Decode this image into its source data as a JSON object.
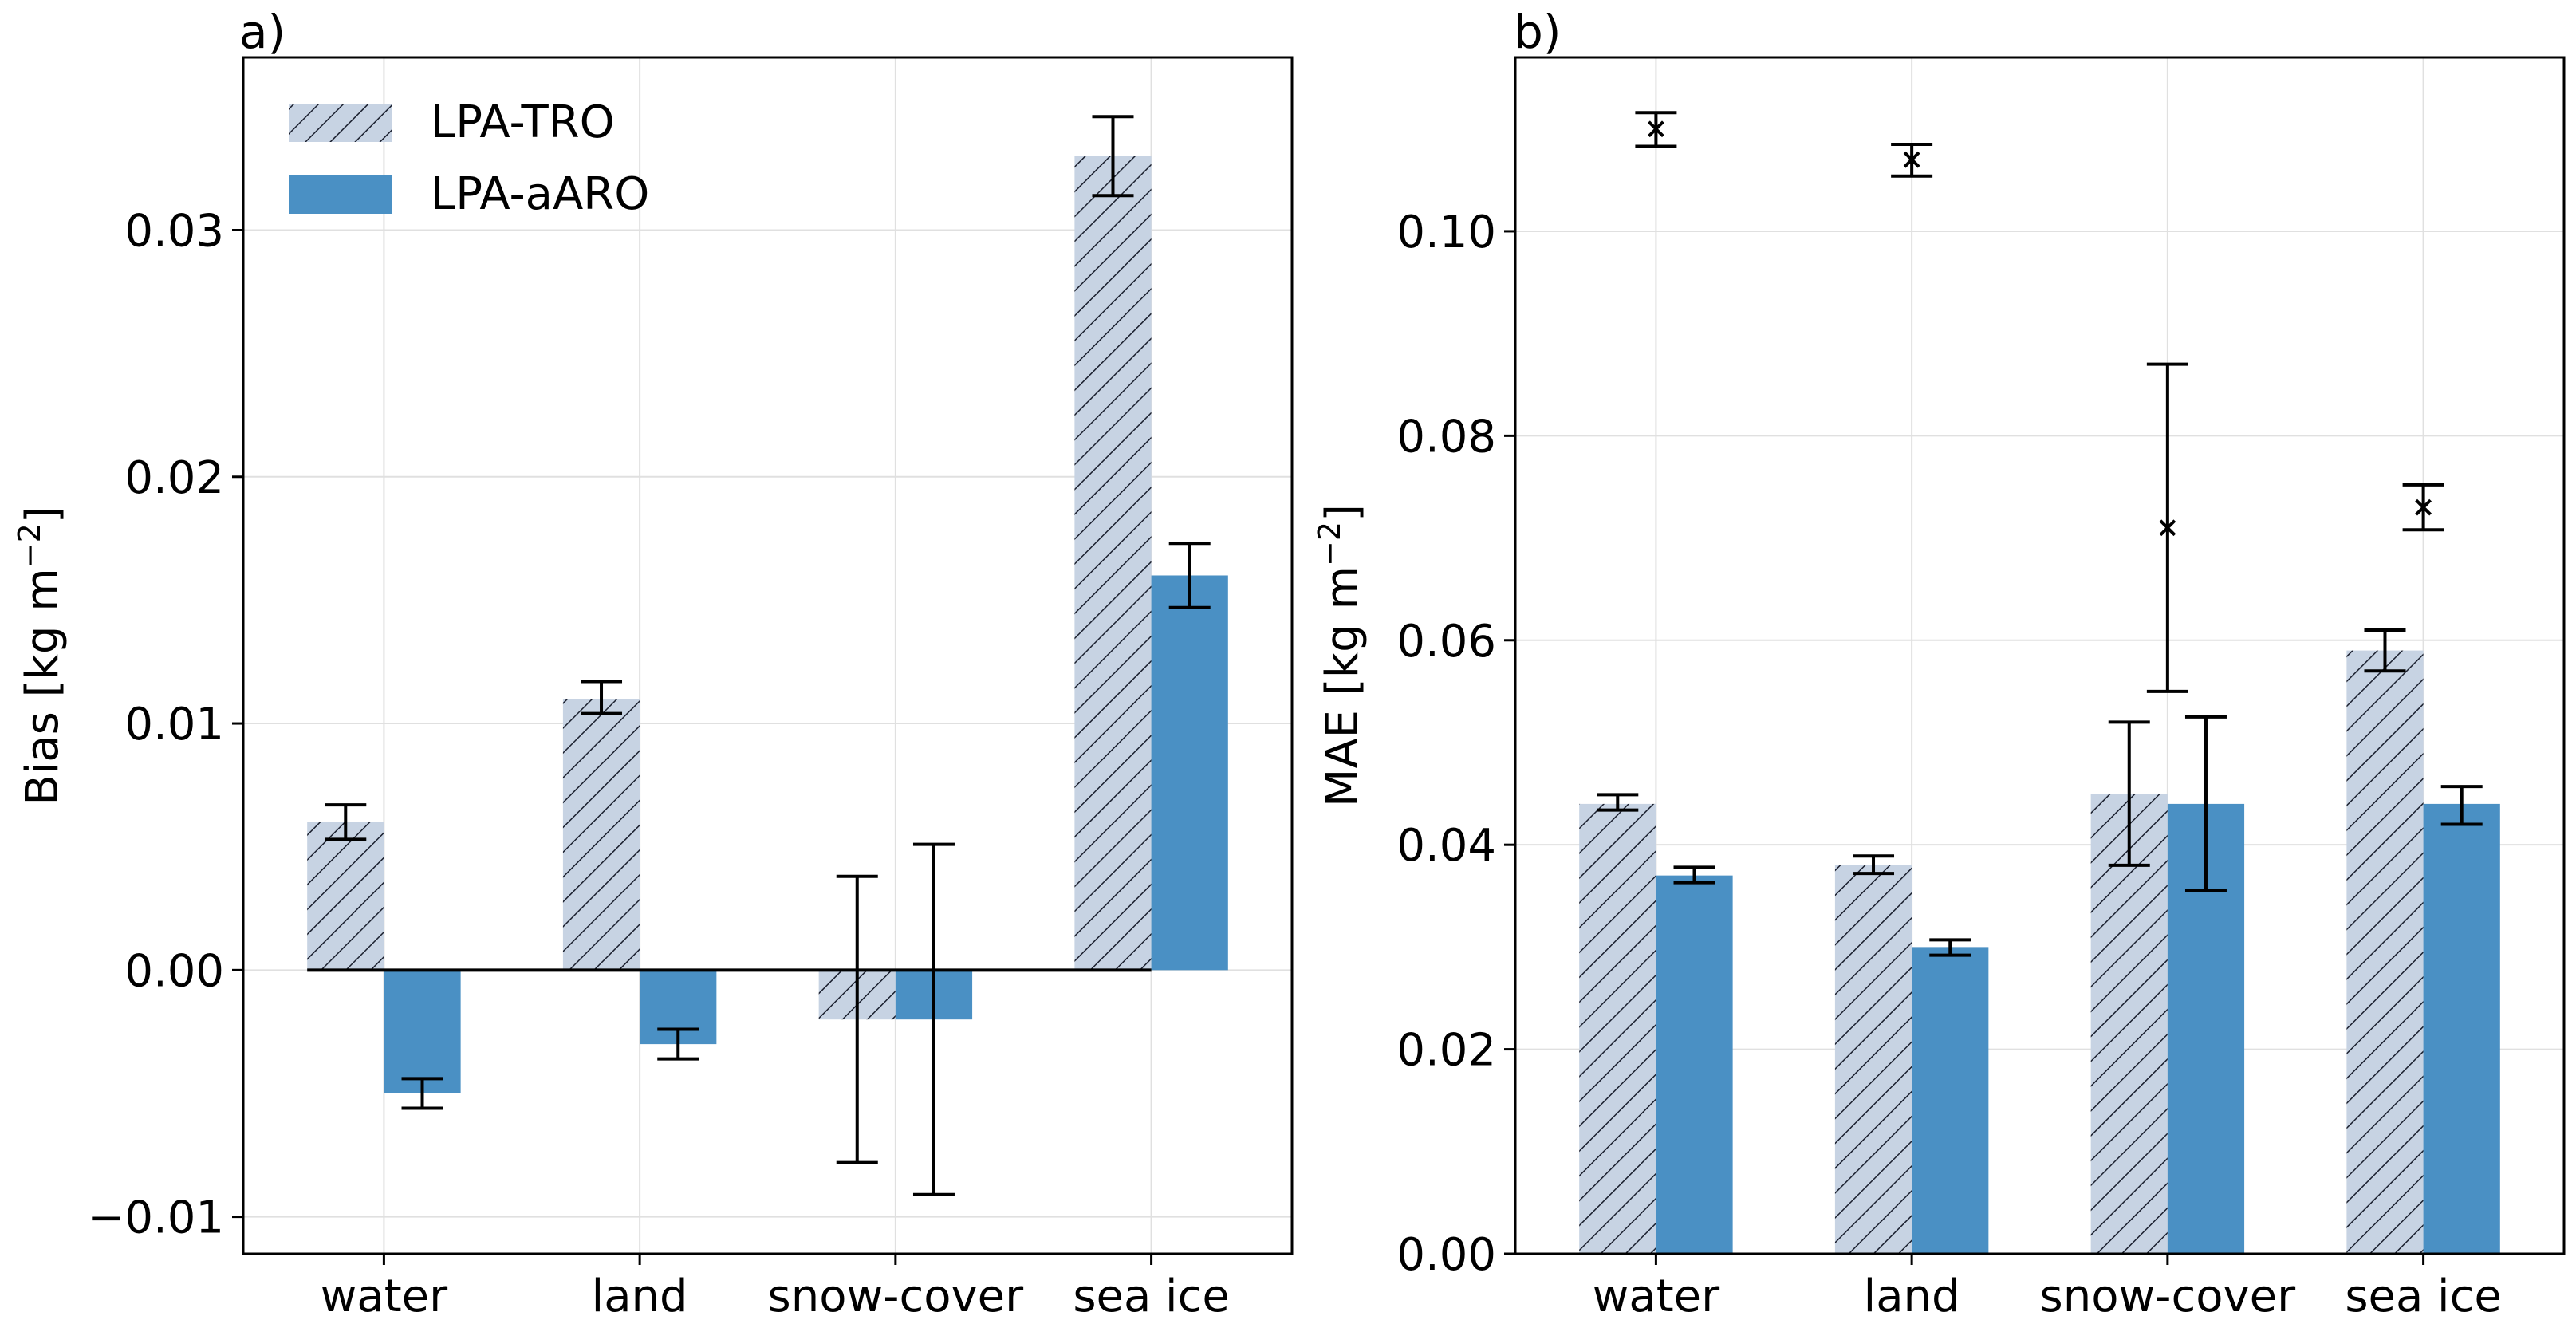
{
  "chart_data": [
    {
      "panel_label": "a)",
      "type": "bar",
      "title": "",
      "xlabel": "",
      "ylabel": "Bias [kg m",
      "ylabel_sup": "−2",
      "ylabel_close": "]",
      "categories": [
        "water",
        "land",
        "snow-cover",
        "sea ice"
      ],
      "ylim": [
        -0.0115,
        0.037
      ],
      "yticks": [
        -0.01,
        0.0,
        0.01,
        0.02,
        0.03
      ],
      "ytick_labels": [
        "−0.01",
        "0.00",
        "0.01",
        "0.02",
        "0.03"
      ],
      "grid": true,
      "legend": "top-left",
      "zero_line": true,
      "series": [
        {
          "name": "LPA-TRO",
          "style": "hatched",
          "values": [
            0.006,
            0.011,
            -0.002,
            0.033
          ],
          "err_low": [
            0.0053,
            0.0104,
            -0.0078,
            0.0314
          ],
          "err_high": [
            0.0067,
            0.0117,
            0.0038,
            0.0346
          ]
        },
        {
          "name": "LPA-aARO",
          "style": "solid",
          "values": [
            -0.005,
            -0.003,
            -0.002,
            0.016
          ],
          "err_low": [
            -0.0056,
            -0.0036,
            -0.0091,
            0.0147
          ],
          "err_high": [
            -0.0044,
            -0.0024,
            0.0051,
            0.0173
          ]
        }
      ],
      "markers": []
    },
    {
      "panel_label": "b)",
      "type": "bar",
      "title": "",
      "xlabel": "",
      "ylabel": "MAE [kg m",
      "ylabel_sup": "−2",
      "ylabel_close": "]",
      "categories": [
        "water",
        "land",
        "snow-cover",
        "sea ice"
      ],
      "ylim": [
        0.0,
        0.117
      ],
      "yticks": [
        0.0,
        0.02,
        0.04,
        0.06,
        0.08,
        0.1
      ],
      "ytick_labels": [
        "0.00",
        "0.02",
        "0.04",
        "0.06",
        "0.08",
        "0.10"
      ],
      "grid": true,
      "legend": "none",
      "zero_line": false,
      "series": [
        {
          "name": "LPA-TRO",
          "style": "hatched",
          "values": [
            0.044,
            0.038,
            0.045,
            0.059
          ],
          "err_low": [
            0.0434,
            0.0372,
            0.038,
            0.057
          ],
          "err_high": [
            0.0449,
            0.0389,
            0.052,
            0.061
          ]
        },
        {
          "name": "LPA-aARO",
          "style": "solid",
          "values": [
            0.037,
            0.03,
            0.044,
            0.044
          ],
          "err_low": [
            0.0363,
            0.0292,
            0.0355,
            0.042
          ],
          "err_high": [
            0.0378,
            0.0307,
            0.0525,
            0.0457
          ]
        }
      ],
      "markers": [
        {
          "value": 0.11,
          "err_low": 0.1083,
          "err_high": 0.1116
        },
        {
          "value": 0.107,
          "err_low": 0.1054,
          "err_high": 0.1085
        },
        {
          "value": 0.071,
          "err_low": 0.055,
          "err_high": 0.087
        },
        {
          "value": 0.073,
          "err_low": 0.0708,
          "err_high": 0.0752
        }
      ]
    }
  ],
  "colors": {
    "hatched_fill": "#c7d3e3",
    "hatch_line": "#1a1f2e",
    "solid_fill": "#4a90c4",
    "grid": "#e0e0e0",
    "axis": "#000000"
  }
}
